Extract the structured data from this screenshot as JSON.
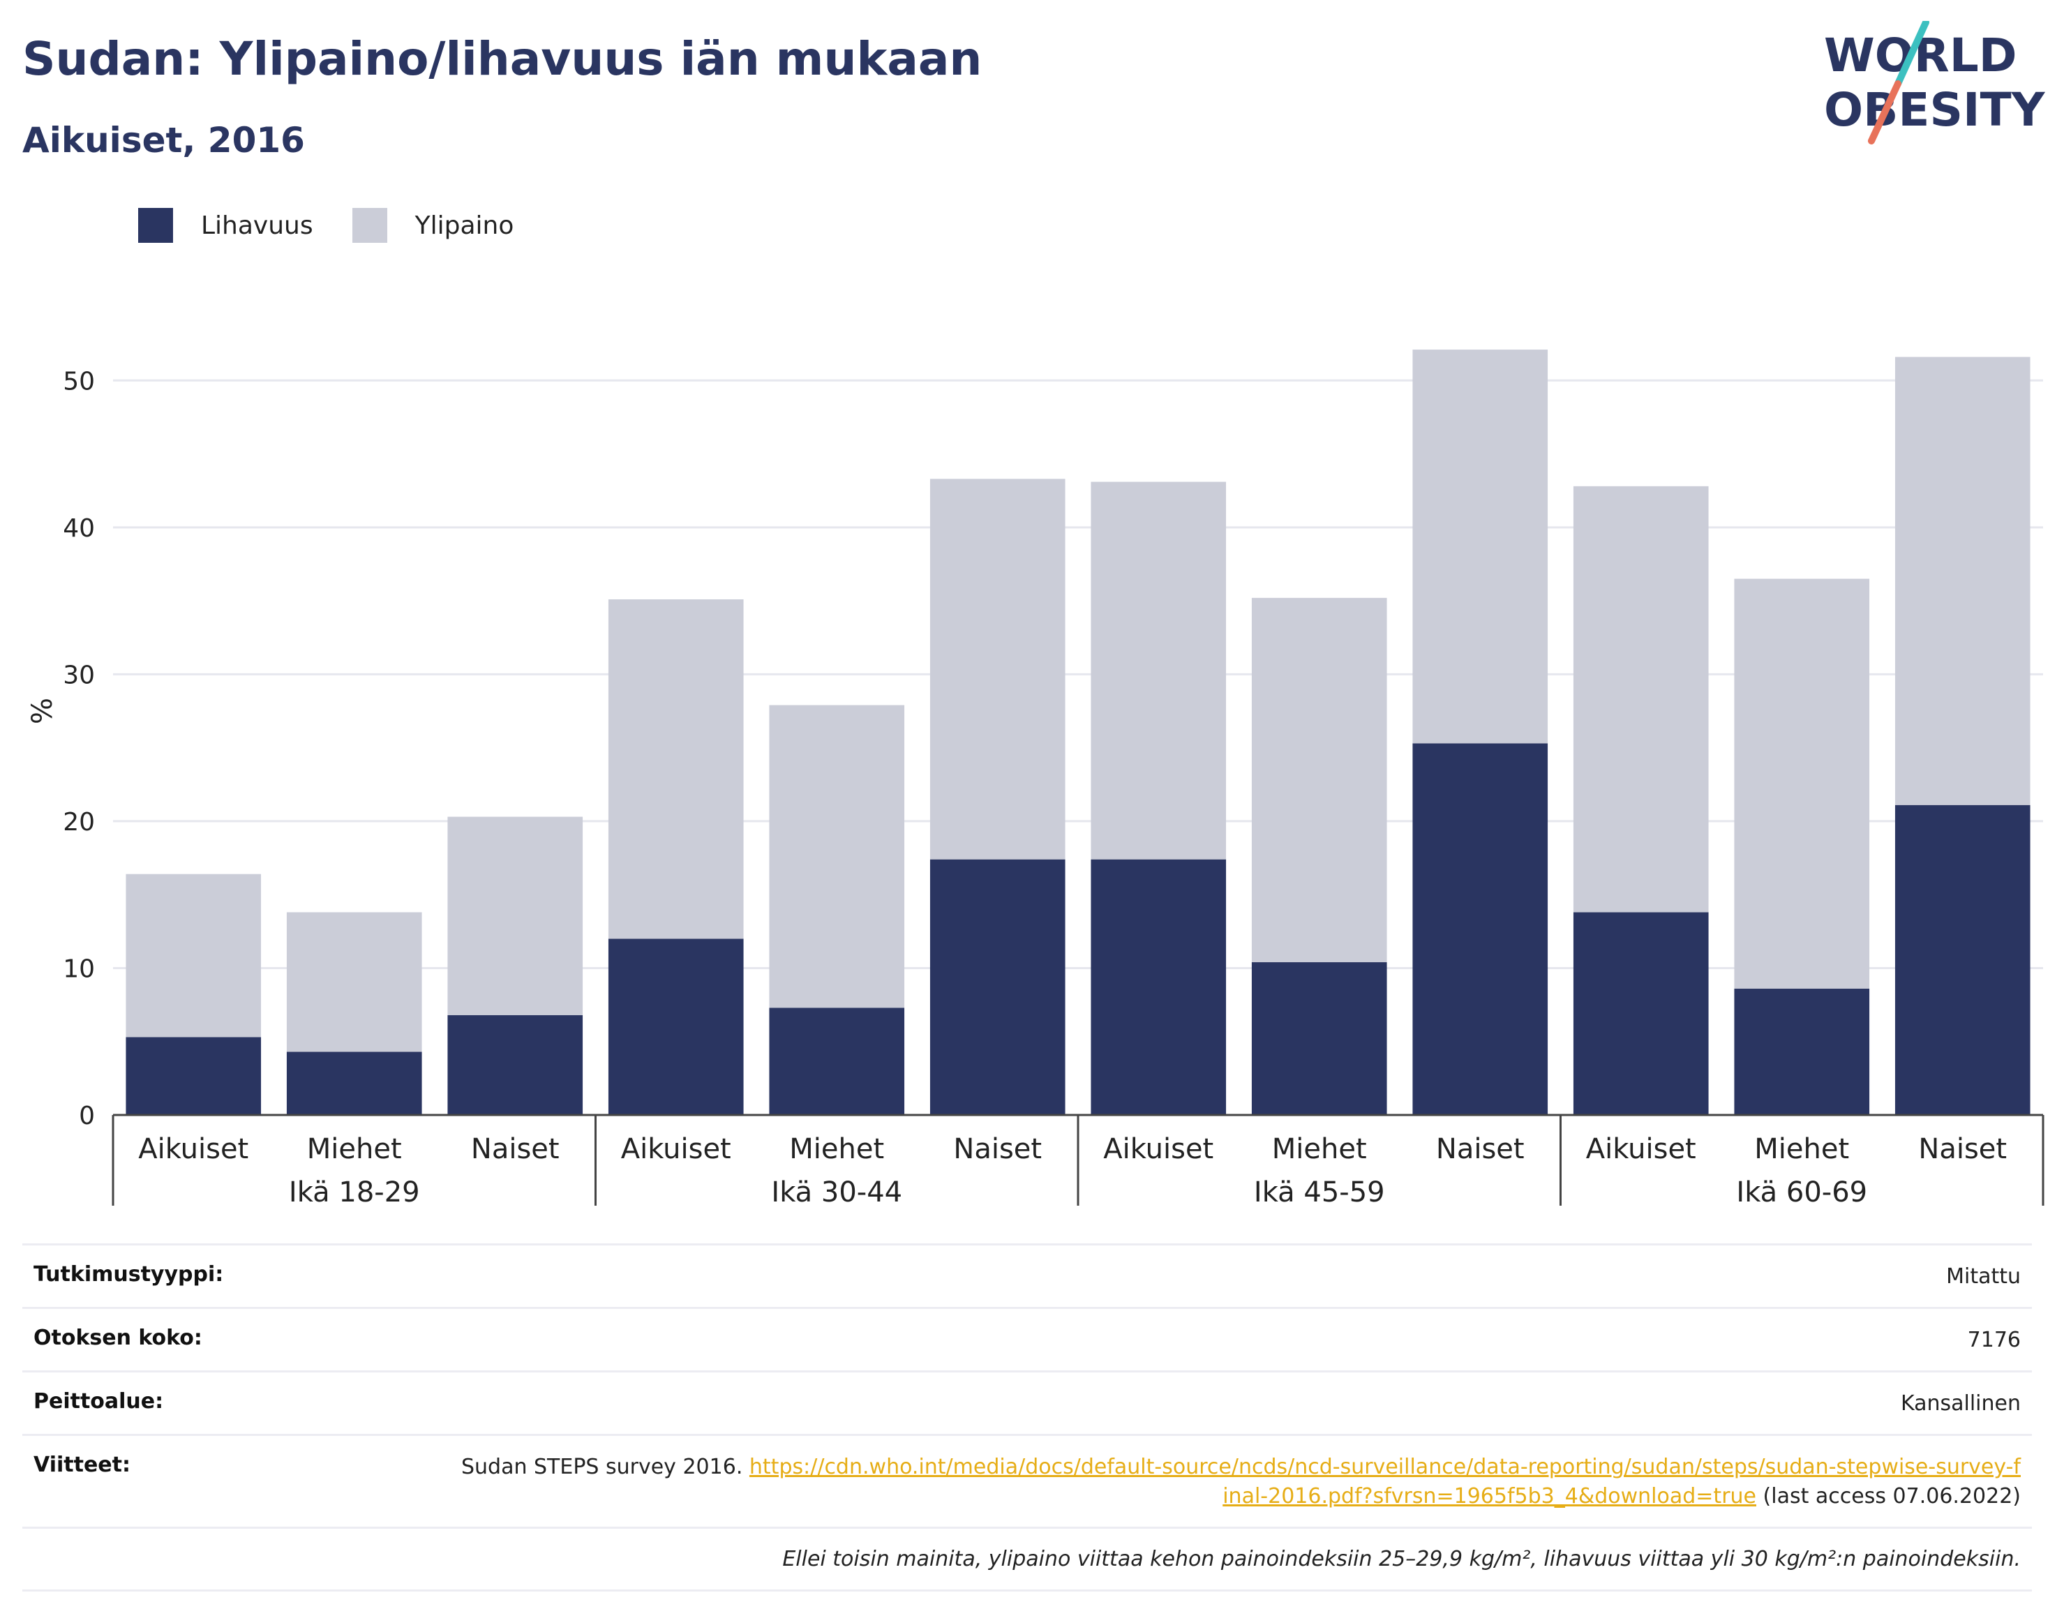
{
  "title": "Sudan: Ylipaino/lihavuus iän mukaan",
  "subtitle": "Aikuiset, 2016",
  "logo": {
    "line1": "WORLD",
    "line2": "OBESITY"
  },
  "legend": [
    {
      "label": "Lihavuus",
      "color": "#2a3561"
    },
    {
      "label": "Ylipaino",
      "color": "#cbcdd8"
    }
  ],
  "chart_data": {
    "type": "bar",
    "stacked": true,
    "ylabel": "%",
    "ylim": [
      0,
      55
    ],
    "yticks": [
      0,
      10,
      20,
      30,
      40,
      50
    ],
    "grid": true,
    "legend_position": "top-left",
    "groups": [
      "Ikä 18-29",
      "Ikä 30-44",
      "Ikä 45-59",
      "Ikä 60-69"
    ],
    "categories": [
      "Aikuiset",
      "Miehet",
      "Naiset"
    ],
    "series": [
      {
        "name": "Lihavuus",
        "color": "#2a3561",
        "values": [
          [
            5.3,
            4.3,
            6.8
          ],
          [
            12.0,
            7.3,
            17.4
          ],
          [
            17.4,
            10.4,
            25.3
          ],
          [
            13.8,
            8.6,
            21.1
          ]
        ]
      },
      {
        "name": "Ylipaino",
        "color": "#cbcdd8",
        "values": [
          [
            11.1,
            9.5,
            13.5
          ],
          [
            23.1,
            20.6,
            25.9
          ],
          [
            25.7,
            24.8,
            26.8
          ],
          [
            29.0,
            27.9,
            30.5
          ]
        ]
      }
    ]
  },
  "info": {
    "rows": [
      {
        "label": "Tutkimustyyppi:",
        "value": "Mitattu"
      },
      {
        "label": "Otoksen koko:",
        "value": "7176"
      },
      {
        "label": "Peittoalue:",
        "value": "Kansallinen"
      }
    ],
    "reference": {
      "label": "Viitteet:",
      "text": "Sudan STEPS survey 2016.",
      "link": "https://cdn.who.int/media/docs/default-source/ncds/ncd-surveillance/data-reporting/sudan/steps/sudan-stepwise-survey-final-2016.pdf?sfvrsn=1965f5b3_4&download=true",
      "suffix": "(last access 07.06.2022)"
    },
    "footnote": "Ellei toisin mainita, ylipaino viittaa kehon painoindeksiin 25–29,9 kg/m², lihavuus viittaa yli 30 kg/m²:n painoindeksiin."
  }
}
